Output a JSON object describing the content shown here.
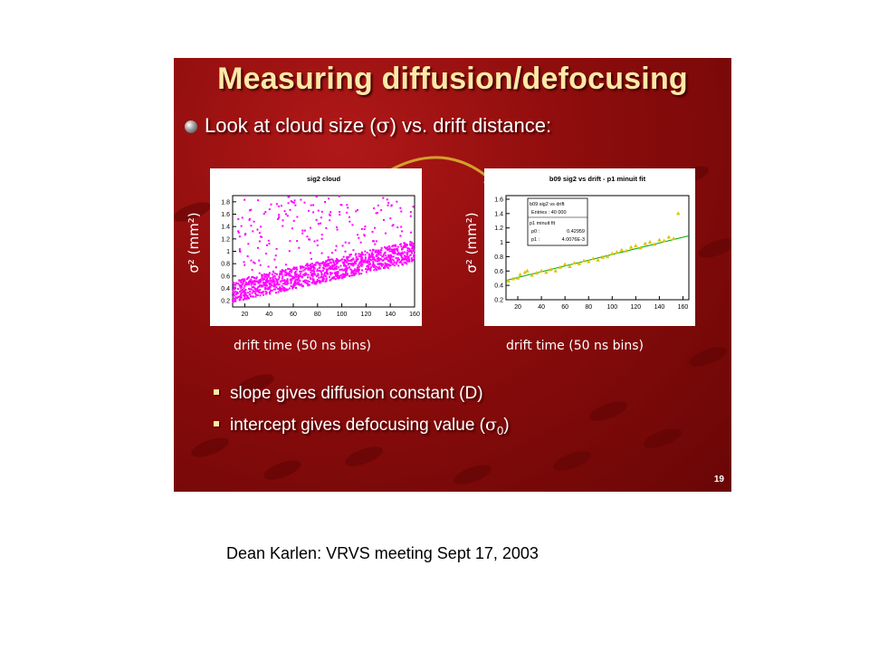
{
  "slide": {
    "title": "Measuring diffusion/defocusing",
    "bullet_main_pre": "Look at cloud size (",
    "bullet_main_sigma": "σ",
    "bullet_main_post": ") vs. drift distance:",
    "sub_bullets": [
      {
        "text": "slope gives diffusion constant (D)"
      },
      {
        "pre": "intercept gives defocusing value (",
        "sigma": "σ",
        "subscript": "0",
        "post": ")"
      }
    ],
    "page_number": "19"
  },
  "footer": "Dean Karlen: VRVS meeting Sept 17, 2003",
  "axis_labels": {
    "y_left": "σ² (mm²)",
    "x_left": "drift time (50 ns bins)",
    "y_right": "σ² (mm²)",
    "x_right": "drift time (50 ns bins)"
  },
  "colors": {
    "slide_bg": "#8c0c0c",
    "title": "#ffe9a8",
    "scatter": "#ff00ff",
    "fit_points": "#e0c000",
    "fit_line": "#00aa00",
    "arrow": "#d4a02a"
  },
  "chart_data": [
    {
      "type": "scatter",
      "title": "sig2 cloud",
      "xlim": [
        10,
        160
      ],
      "ylim": [
        0.1,
        1.9
      ],
      "x_ticks": [
        20,
        40,
        60,
        80,
        100,
        120,
        140,
        160
      ],
      "y_ticks": [
        0.2,
        0.4,
        0.6,
        0.8,
        1.0,
        1.2,
        1.4,
        1.6,
        1.8
      ],
      "band": {
        "x_start": 10,
        "x_end": 160,
        "y_start": 0.35,
        "y_end": 1.0
      }
    },
    {
      "type": "scatter",
      "title": "b09 sig2 vs drift - p1 minuit fit",
      "xlim": [
        10,
        165
      ],
      "ylim": [
        0.2,
        1.65
      ],
      "x_ticks": [
        20,
        40,
        60,
        80,
        100,
        120,
        140,
        160
      ],
      "y_ticks": [
        0.2,
        0.4,
        0.6,
        0.8,
        1.0,
        1.2,
        1.4,
        1.6
      ],
      "stats": {
        "name": "b09 sig2 vs drift",
        "entries_label": "Entries",
        "entries": "40 000",
        "fit_name": "p1 minuit fit",
        "p0_label": "p0",
        "p0": "0.42959",
        "p1_label": "p1",
        "p1": "4.0076E-3"
      },
      "fit": {
        "p0": 0.42959,
        "p1": 0.0040076
      },
      "points": [
        [
          12,
          0.46
        ],
        [
          16,
          0.49
        ],
        [
          20,
          0.5
        ],
        [
          22,
          0.55
        ],
        [
          26,
          0.58
        ],
        [
          28,
          0.6
        ],
        [
          32,
          0.54
        ],
        [
          36,
          0.57
        ],
        [
          40,
          0.6
        ],
        [
          44,
          0.58
        ],
        [
          48,
          0.62
        ],
        [
          52,
          0.6
        ],
        [
          56,
          0.65
        ],
        [
          60,
          0.69
        ],
        [
          64,
          0.66
        ],
        [
          68,
          0.71
        ],
        [
          72,
          0.7
        ],
        [
          76,
          0.74
        ],
        [
          80,
          0.73
        ],
        [
          84,
          0.77
        ],
        [
          88,
          0.75
        ],
        [
          92,
          0.79
        ],
        [
          96,
          0.8
        ],
        [
          100,
          0.84
        ],
        [
          104,
          0.86
        ],
        [
          108,
          0.89
        ],
        [
          112,
          0.88
        ],
        [
          116,
          0.93
        ],
        [
          120,
          0.95
        ],
        [
          124,
          0.92
        ],
        [
          128,
          0.98
        ],
        [
          132,
          1.0
        ],
        [
          136,
          0.97
        ],
        [
          140,
          1.03
        ],
        [
          144,
          1.02
        ],
        [
          148,
          1.07
        ],
        [
          152,
          1.05
        ],
        [
          156,
          1.4
        ]
      ]
    }
  ]
}
